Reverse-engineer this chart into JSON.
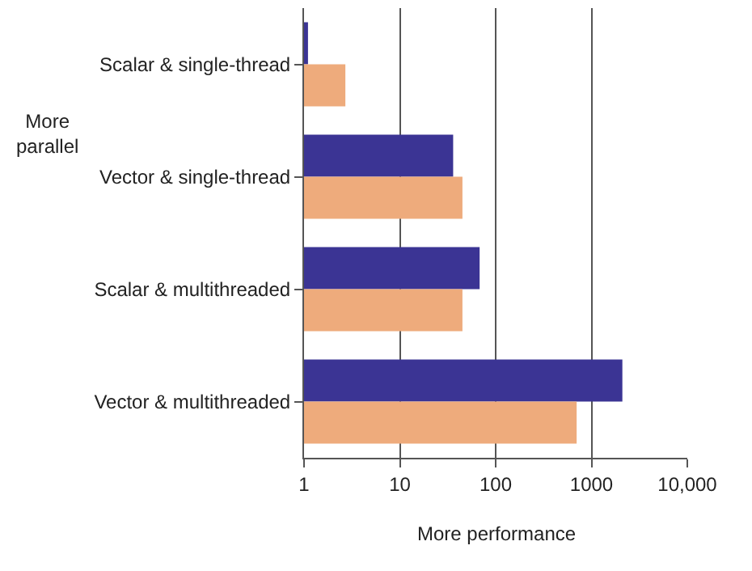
{
  "chart_data": {
    "type": "bar",
    "orientation": "horizontal",
    "log": "x",
    "categories": [
      "Scalar & single-thread",
      "Vector & single-thread",
      "Scalar & multithreaded",
      "Vector & multithreaded"
    ],
    "series": [
      {
        "color": "#3b3494",
        "values": [
          1.1,
          36,
          68,
          2100
        ]
      },
      {
        "color": "#eeab7c",
        "values": [
          2.7,
          45,
          45,
          700
        ]
      }
    ],
    "xlim": [
      1,
      10000
    ],
    "xticks": [
      1,
      10,
      100,
      1000,
      {
        "value": 10000,
        "label": "10,000"
      }
    ],
    "grid": "x",
    "annotations": [
      "More parallel",
      "More performance"
    ]
  }
}
